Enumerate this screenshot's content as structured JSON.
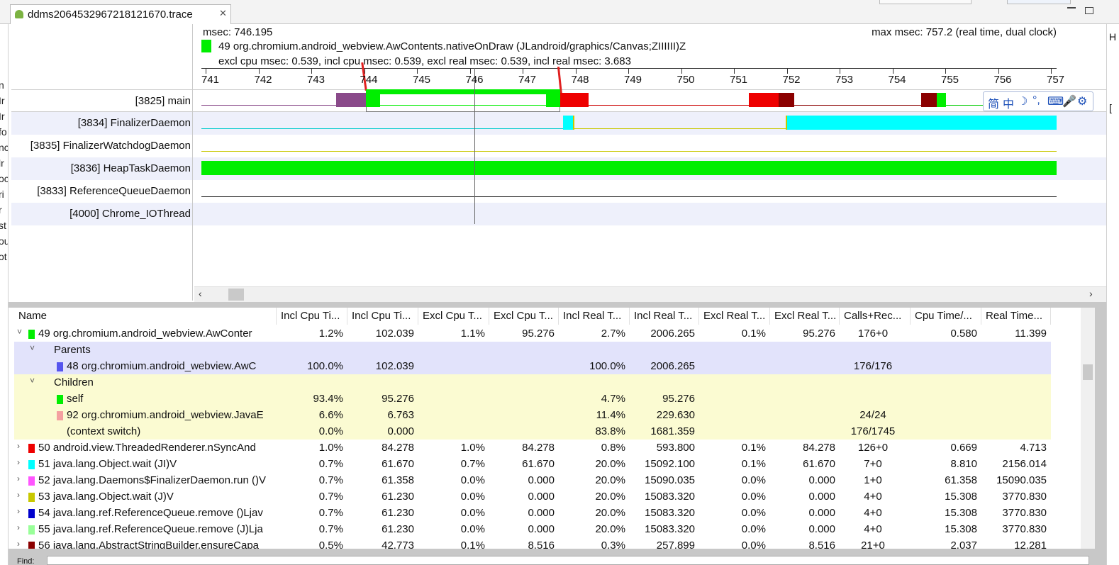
{
  "tab": {
    "title": "ddms2064532967218121670.trace"
  },
  "gutter_letters": [
    "n",
    "Ir",
    "Ir",
    "fo",
    "nc",
    "lr",
    "oc",
    "ri",
    "r",
    "st",
    "ou",
    "ot"
  ],
  "timeline": {
    "msec": "msec: 746.195",
    "max_msec": "max msec: 757.2 (real time, dual clock)",
    "method_label": "49 org.chromium.android_webview.AwContents.nativeOnDraw (JLandroid/graphics/Canvas;ZIIIIII)Z",
    "method_color": "#00ee00",
    "stats": "excl cpu msec: 0.539, incl cpu msec: 0.539, excl real msec: 0.539, incl real msec: 3.683",
    "ticks": [
      "741",
      "742",
      "743",
      "744",
      "745",
      "746",
      "747",
      "748",
      "749",
      "750",
      "751",
      "752",
      "753",
      "754",
      "755",
      "756",
      "757"
    ],
    "cursor_at": 746.0
  },
  "threads": [
    {
      "label": "[3825] main"
    },
    {
      "label": "[3834] FinalizerDaemon"
    },
    {
      "label": "[3835] FinalizerWatchdogDaemon"
    },
    {
      "label": "[3836] HeapTaskDaemon"
    },
    {
      "label": "[3833] ReferenceQueueDaemon"
    },
    {
      "label": "[4000] Chrome_IOThread"
    }
  ],
  "table": {
    "columns": [
      "Name",
      "Incl Cpu Ti...",
      "Incl Cpu Ti...",
      "Excl Cpu T...",
      "Excl Cpu T...",
      "Incl Real T...",
      "Incl Real T...",
      "Excl Real T...",
      "Excl Real T...",
      "Calls+Rec...",
      "Cpu Time/...",
      "Real Time..."
    ],
    "rows": [
      {
        "kind": "top",
        "expander": "˅",
        "color": "#00ee00",
        "name": "49 org.chromium.android_webview.AwConter",
        "vals": [
          "1.2%",
          "102.039",
          "1.1%",
          "95.276",
          "2.7%",
          "2006.265",
          "0.1%",
          "95.276",
          "176+0",
          "0.580",
          "11.399"
        ]
      },
      {
        "kind": "parent-h",
        "expander": "˅",
        "name": "Parents"
      },
      {
        "kind": "parent",
        "color": "#5555ee",
        "name": "48 org.chromium.android_webview.AwC",
        "vals": [
          "100.0%",
          "102.039",
          "",
          "",
          "100.0%",
          "2006.265",
          "",
          "",
          "176/176",
          "",
          ""
        ]
      },
      {
        "kind": "child-h",
        "expander": "˅",
        "name": "Children"
      },
      {
        "kind": "child",
        "color": "#00ee00",
        "name": "self",
        "vals": [
          "93.4%",
          "95.276",
          "",
          "",
          "4.7%",
          "95.276",
          "",
          "",
          "",
          "",
          ""
        ]
      },
      {
        "kind": "child",
        "color": "#f4a0a0",
        "name": "92 org.chromium.android_webview.JavaE",
        "vals": [
          "6.6%",
          "6.763",
          "",
          "",
          "11.4%",
          "229.630",
          "",
          "",
          "24/24",
          "",
          ""
        ]
      },
      {
        "kind": "child",
        "color": "",
        "name": "(context switch)",
        "vals": [
          "0.0%",
          "0.000",
          "",
          "",
          "83.8%",
          "1681.359",
          "",
          "",
          "176/1745",
          "",
          ""
        ]
      },
      {
        "kind": "top",
        "expander": "›",
        "color": "#ee0000",
        "name": "50 android.view.ThreadedRenderer.nSyncAnd",
        "vals": [
          "1.0%",
          "84.278",
          "1.0%",
          "84.278",
          "0.8%",
          "593.800",
          "0.1%",
          "84.278",
          "126+0",
          "0.669",
          "4.713"
        ]
      },
      {
        "kind": "top",
        "expander": "›",
        "color": "#00ffff",
        "name": "51 java.lang.Object.wait (JI)V",
        "vals": [
          "0.7%",
          "61.670",
          "0.7%",
          "61.670",
          "20.0%",
          "15092.100",
          "0.1%",
          "61.670",
          "7+0",
          "8.810",
          "2156.014"
        ]
      },
      {
        "kind": "top",
        "expander": "›",
        "color": "#ff55ff",
        "name": "52 java.lang.Daemons$FinalizerDaemon.run ()V",
        "vals": [
          "0.7%",
          "61.358",
          "0.0%",
          "0.000",
          "20.0%",
          "15090.035",
          "0.0%",
          "0.000",
          "1+0",
          "61.358",
          "15090.035"
        ]
      },
      {
        "kind": "top",
        "expander": "›",
        "color": "#c8c800",
        "name": "53 java.lang.Object.wait (J)V",
        "vals": [
          "0.7%",
          "61.230",
          "0.0%",
          "0.000",
          "20.0%",
          "15083.320",
          "0.0%",
          "0.000",
          "4+0",
          "15.308",
          "3770.830"
        ]
      },
      {
        "kind": "top",
        "expander": "›",
        "color": "#0000cc",
        "name": "54 java.lang.ref.ReferenceQueue.remove ()Ljav",
        "vals": [
          "0.7%",
          "61.230",
          "0.0%",
          "0.000",
          "20.0%",
          "15083.320",
          "0.0%",
          "0.000",
          "4+0",
          "15.308",
          "3770.830"
        ]
      },
      {
        "kind": "top",
        "expander": "›",
        "color": "#99ff99",
        "name": "55 java.lang.ref.ReferenceQueue.remove (J)Lja",
        "vals": [
          "0.7%",
          "61.230",
          "0.0%",
          "0.000",
          "20.0%",
          "15083.320",
          "0.0%",
          "0.000",
          "4+0",
          "15.308",
          "3770.830"
        ]
      },
      {
        "kind": "top",
        "expander": "›",
        "color": "#8b0000",
        "name": "56 java.lang.AbstractStringBuilder.ensureCapa",
        "vals": [
          "0.5%",
          "42.773",
          "0.1%",
          "8.516",
          "0.3%",
          "257.899",
          "0.0%",
          "8.516",
          "21+0",
          "2.037",
          "12.281"
        ]
      }
    ]
  },
  "bottom": {
    "label": "Find:"
  },
  "ime": {
    "items": [
      "简",
      "中",
      "☽",
      "°,",
      "⌨",
      "🎤",
      "⚙"
    ]
  }
}
